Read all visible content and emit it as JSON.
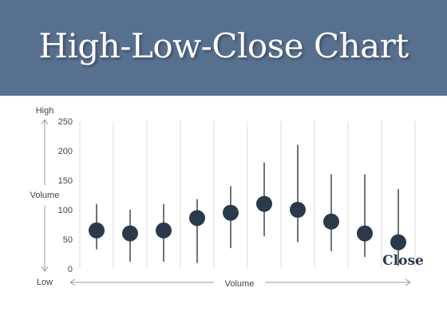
{
  "title": "High-Low-Close Chart",
  "labels": {
    "high": "High",
    "low": "Low",
    "y_volume": "Volume",
    "x_volume": "Volume",
    "close": "Close"
  },
  "colors": {
    "banner": "#58708f",
    "marker": "#2b3a4a",
    "grid": "#dddddd"
  },
  "chart_data": {
    "type": "scatter",
    "subtype": "high-low-close",
    "title": "High-Low-Close Chart",
    "ylim": [
      0,
      250
    ],
    "yticks": [
      0,
      50,
      100,
      150,
      200,
      250
    ],
    "grid": "vertical",
    "points": [
      {
        "high": 110,
        "low": 33,
        "close": 65
      },
      {
        "high": 100,
        "low": 12,
        "close": 60
      },
      {
        "high": 110,
        "low": 12,
        "close": 65
      },
      {
        "high": 118,
        "low": 10,
        "close": 86
      },
      {
        "high": 140,
        "low": 35,
        "close": 95
      },
      {
        "high": 180,
        "low": 55,
        "close": 110
      },
      {
        "high": 210,
        "low": 45,
        "close": 100
      },
      {
        "high": 160,
        "low": 30,
        "close": 80
      },
      {
        "high": 160,
        "low": 20,
        "close": 60
      },
      {
        "high": 135,
        "low": 5,
        "close": 45
      }
    ]
  }
}
